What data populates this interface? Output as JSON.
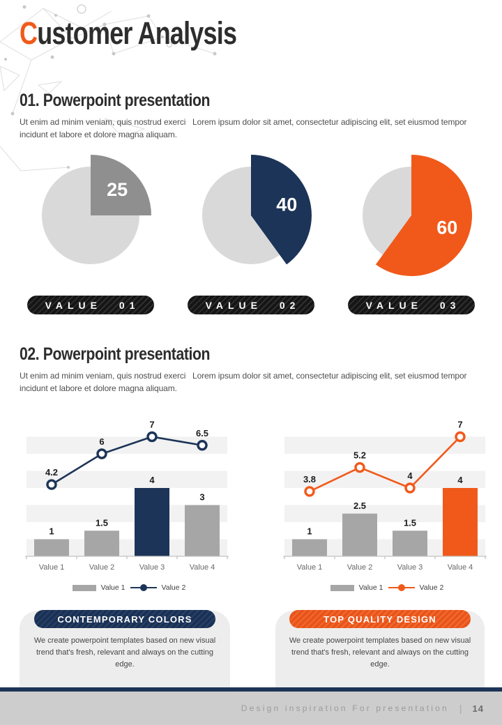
{
  "header": {
    "title_first": "C",
    "title_rest": "ustomer Analysis"
  },
  "sections": [
    {
      "heading": "01. Powerpoint presentation",
      "body": "Ut enim ad minim veniam, quis nostrud exerci   Lorem ipsum dolor sit amet, consectetur adipiscing elit, set eiusmod tempor\nincidunt et labore et dolore magna aliquam."
    },
    {
      "heading": "02. Powerpoint presentation",
      "body": "Ut enim ad minim veniam, quis nostrud exerci   Lorem ipsum dolor sit amet, consectetur adipiscing elit, set eiusmod tempor\nincidunt et labore et dolore magna aliquam."
    }
  ],
  "colors": {
    "orange": "#F1591A",
    "navy": "#1C3457",
    "pie_base_gray": "#D9D9D9",
    "pie_gray": "#8F8F8F",
    "bar_gray": "#A6A6A6",
    "band_gray": "#F2F2F2",
    "axis_gray": "#C3C3C3",
    "footer_bar": "#CDCDCD"
  },
  "pies": [
    {
      "value": 25,
      "label": "25",
      "color": "#8F8F8F",
      "badge": "VALUE 01"
    },
    {
      "value": 40,
      "label": "40",
      "color": "#1C3457",
      "badge": "VALUE 02"
    },
    {
      "value": 60,
      "label": "60",
      "color": "#F1591A",
      "badge": "VALUE 03"
    }
  ],
  "chart_data": [
    {
      "type": "combo_bar_line",
      "categories": [
        "Value 1",
        "Value 2",
        "Value 3",
        "Value 4"
      ],
      "series": [
        {
          "name": "Value 1",
          "type": "bar",
          "values": [
            1,
            1.5,
            4,
            3
          ],
          "colors": [
            "#A6A6A6",
            "#A6A6A6",
            "#1C3457",
            "#A6A6A6"
          ]
        },
        {
          "name": "Value 2",
          "type": "line",
          "values": [
            4.2,
            6,
            7,
            6.5
          ],
          "color": "#1C3457"
        }
      ],
      "ylim": [
        0,
        8
      ],
      "grid": "striped-bands",
      "legend_position": "bottom",
      "legend": [
        "Value 1",
        "Value 2"
      ]
    },
    {
      "type": "combo_bar_line",
      "categories": [
        "Value 1",
        "Value 2",
        "Value 3",
        "Value 4"
      ],
      "series": [
        {
          "name": "Value 1",
          "type": "bar",
          "values": [
            1,
            2.5,
            1.5,
            4
          ],
          "colors": [
            "#A6A6A6",
            "#A6A6A6",
            "#A6A6A6",
            "#F1591A"
          ]
        },
        {
          "name": "Value 2",
          "type": "line",
          "values": [
            3.8,
            5.2,
            4,
            7
          ],
          "color": "#F1591A"
        }
      ],
      "ylim": [
        0,
        8
      ],
      "grid": "striped-bands",
      "legend_position": "bottom",
      "legend": [
        "Value 1",
        "Value 2"
      ]
    }
  ],
  "cards": [
    {
      "title": "CONTEMPORARY COLORS",
      "accent": "#1C3457",
      "body": "We create powerpoint templates based on new visual\ntrend that's fresh, relevant and always on the cutting\nedge."
    },
    {
      "title": "TOP QUALITY DESIGN",
      "accent": "#F1591A",
      "body": "We create powerpoint templates based on new visual\ntrend that's fresh, relevant and always on the cutting\nedge."
    }
  ],
  "footer": {
    "text": "Design inspiration For presentation",
    "divider": "|",
    "page": "14"
  }
}
